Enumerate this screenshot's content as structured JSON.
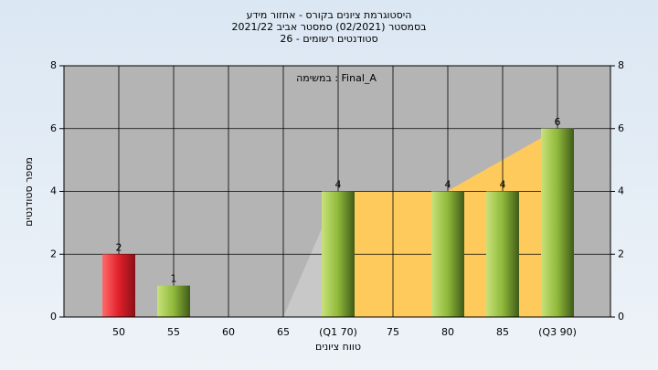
{
  "chart_data": {
    "type": "bar",
    "title_lines": [
      "היסטוגרמת ציונים בקורס - אחזור מידע",
      "בסמסטר  (02/2021)  סמסטר אביב 2021/22",
      "סטודנטים רשומים - 26"
    ],
    "annotation": "במשימה : Final_A",
    "x_label": "טווח ציונים",
    "y_label": "מספר סטודנטים",
    "categories": [
      "50",
      "55",
      "60",
      "65",
      "(Q1 70)",
      "75",
      "80",
      "85",
      "(Q3 90)"
    ],
    "values": [
      2,
      1,
      0,
      0,
      4,
      0,
      4,
      4,
      6
    ],
    "colors": [
      "#e0202a",
      "#8fb83a",
      "#8fb83a",
      "#8fb83a",
      "#8fb83a",
      "#8fb83a",
      "#8fb83a",
      "#8fb83a",
      "#8fb83a"
    ],
    "ylim": [
      0,
      8
    ],
    "yticks": [
      0,
      2,
      4,
      6,
      8
    ],
    "y2lim": [
      0,
      8
    ],
    "y2ticks": [
      0,
      2,
      4,
      6,
      8
    ],
    "grid": true
  }
}
